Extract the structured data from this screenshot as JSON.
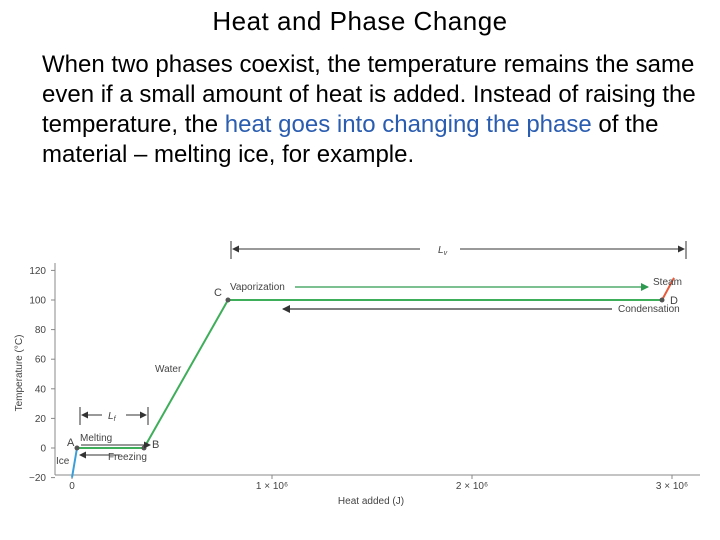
{
  "slide": {
    "title": "Heat and Phase Change",
    "body": {
      "part1": "When two phases coexist, the temperature remains the same even if a small amount of heat is added. Instead of raising the temperature, the ",
      "highlight": "heat goes into changing the phase",
      "part2": " of the material – melting ice, for example."
    }
  },
  "chart_data": {
    "type": "line",
    "title": "",
    "xlabel": "Heat added (J)",
    "ylabel": "Temperature (°C)",
    "xlim": [
      0,
      3100000
    ],
    "ylim": [
      -20,
      120
    ],
    "y_ticks": [
      "−20",
      "0",
      "20",
      "40",
      "60",
      "80",
      "100",
      "120"
    ],
    "x_ticks": [
      {
        "value": 0,
        "label": "0"
      },
      {
        "value": 1000000,
        "label": "1 × 10⁶"
      },
      {
        "value": 2000000,
        "label": "2 × 10⁶"
      },
      {
        "value": 3000000,
        "label": "3 × 10⁶"
      }
    ],
    "series": [
      {
        "segment": "ice",
        "color": "#3a9fd8",
        "x": [
          0,
          25000
        ],
        "y": [
          -20,
          0
        ]
      },
      {
        "segment": "melting",
        "color": "#3fae5a",
        "x": [
          25000,
          360000
        ],
        "y": [
          0,
          0
        ]
      },
      {
        "segment": "water",
        "color": "#3fae5a",
        "x": [
          360000,
          780000
        ],
        "y": [
          0,
          100
        ]
      },
      {
        "segment": "vaporization",
        "color": "#3fae5a",
        "x": [
          780000,
          2950000
        ],
        "y": [
          100,
          100
        ]
      },
      {
        "segment": "steam",
        "color": "#e85a3a",
        "x": [
          2950000,
          3010000
        ],
        "y": [
          100,
          115
        ]
      }
    ],
    "points": [
      {
        "label": "A",
        "x": 25000,
        "y": 0
      },
      {
        "label": "B",
        "x": 360000,
        "y": 0
      },
      {
        "label": "C",
        "x": 780000,
        "y": 100
      },
      {
        "label": "D",
        "x": 2950000,
        "y": 100
      }
    ],
    "annotations": {
      "ice": "Ice",
      "melting": "Melting",
      "freezing": "Freezing",
      "water": "Water",
      "vaporization": "Vaporization",
      "condensation": "Condensation",
      "steam": "Steam",
      "lf": "L",
      "lf_sub": "f",
      "lv": "L",
      "lv_sub": "v"
    },
    "grid": false
  }
}
